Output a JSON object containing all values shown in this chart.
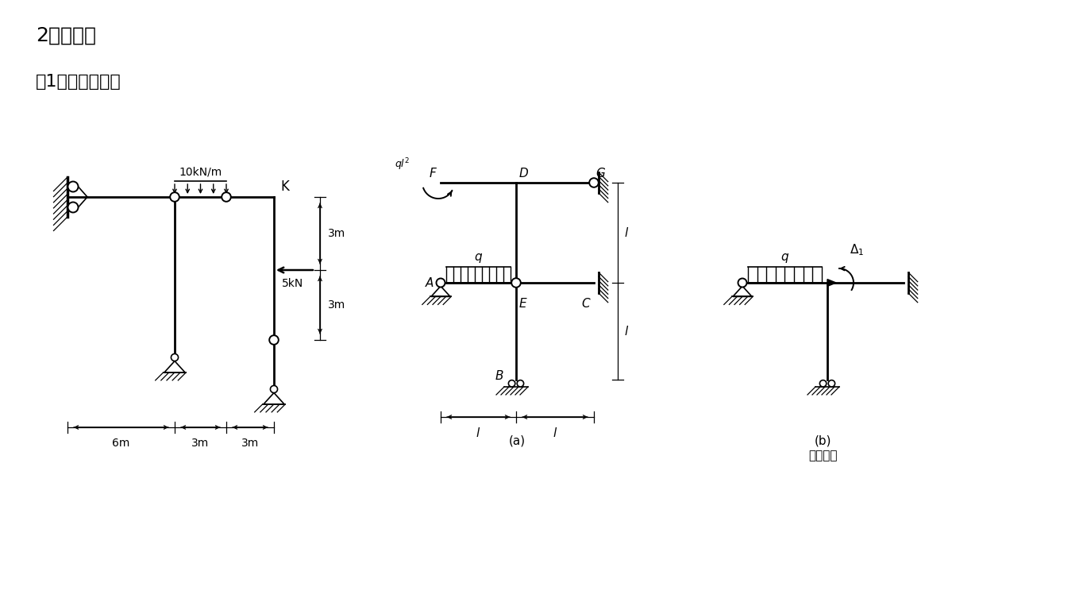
{
  "bg_color": "#ffffff",
  "title1": "2、简化：",
  "title2": "（1）静定结构：",
  "fig_label_a": "(a)",
  "fig_label_b": "(b)",
  "label_jibentxt": "基本体系"
}
